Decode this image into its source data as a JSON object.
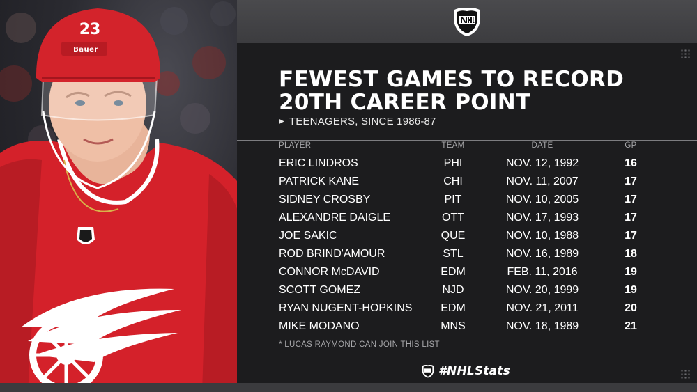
{
  "title_line1": "FEWEST GAMES TO RECORD",
  "title_line2": "20TH CAREER POINT",
  "subtitle": "TEENAGERS, SINCE 1986-87",
  "columns": {
    "player": "PLAYER",
    "team": "TEAM",
    "date": "DATE",
    "gp": "GP"
  },
  "rows": [
    {
      "player": "ERIC LINDROS",
      "team": "PHI",
      "date": "NOV. 12, 1992",
      "gp": "16"
    },
    {
      "player": "PATRICK KANE",
      "team": "CHI",
      "date": "NOV. 11, 2007",
      "gp": "17"
    },
    {
      "player": "SIDNEY CROSBY",
      "team": "PIT",
      "date": "NOV. 10, 2005",
      "gp": "17"
    },
    {
      "player": "ALEXANDRE DAIGLE",
      "team": "OTT",
      "date": "NOV. 17, 1993",
      "gp": "17"
    },
    {
      "player": "JOE SAKIC",
      "team": "QUE",
      "date": "NOV. 10, 1988",
      "gp": "17"
    },
    {
      "player": "ROD BRIND'AMOUR",
      "team": "STL",
      "date": "NOV. 16, 1989",
      "gp": "18"
    },
    {
      "player": "CONNOR McDAVID",
      "team": "EDM",
      "date": "FEB. 11, 2016",
      "gp": "19"
    },
    {
      "player": "SCOTT GOMEZ",
      "team": "NJD",
      "date": "NOV. 20, 1999",
      "gp": "19"
    },
    {
      "player": "RYAN NUGENT-HOPKINS",
      "team": "EDM",
      "date": "NOV. 21, 2011",
      "gp": "20"
    },
    {
      "player": "MIKE MODANO",
      "team": "MNS",
      "date": "NOV. 18, 1989",
      "gp": "21"
    }
  ],
  "footnote": "* LUCAS RAYMOND CAN JOIN THIS LIST",
  "hashtag": "#NHLStats",
  "photo": {
    "helmet_number": "23",
    "helmet_brand": "Bauer"
  },
  "colors": {
    "panel": "#1c1c1e",
    "jersey_red": "#d8232a",
    "text": "#ffffff",
    "muted": "#a7a7aa"
  }
}
